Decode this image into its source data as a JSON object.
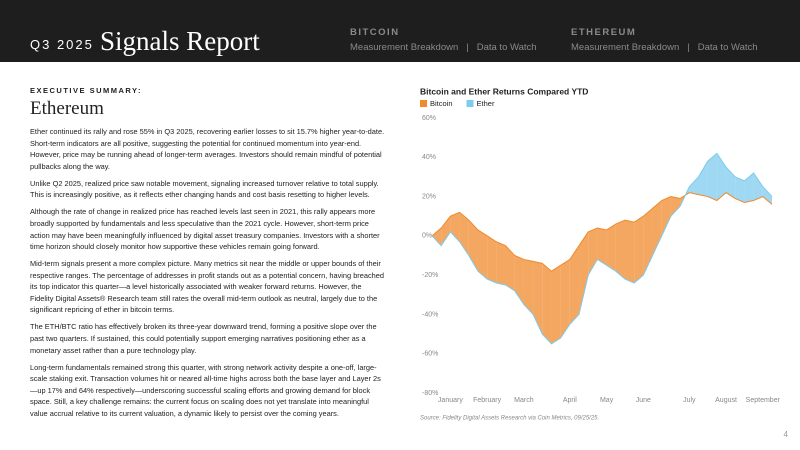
{
  "header": {
    "quarter": "Q3 2025",
    "title": "Signals Report",
    "nav": [
      {
        "heading": "BITCOIN",
        "links": [
          "Measurement Breakdown",
          "Data to Watch"
        ],
        "separator": "|"
      },
      {
        "heading": "ETHEREUM",
        "links": [
          "Measurement Breakdown",
          "Data to Watch"
        ],
        "separator": "|"
      }
    ]
  },
  "summary": {
    "label": "EXECUTIVE SUMMARY:",
    "heading": "Ethereum",
    "paragraphs": [
      "Ether continued its rally and rose 55% in Q3 2025, recovering earlier losses to sit 15.7% higher year-to-date. Short-term indicators are all positive, suggesting the potential for continued momentum into year-end. However, price may be running ahead of longer-term averages. Investors should remain mindful of potential pullbacks along the way.",
      "Unlike Q2 2025, realized price saw notable movement, signaling increased turnover relative to total supply. This is increasingly positive, as it reflects ether changing hands and cost basis resetting to higher levels.",
      "Although the rate of change in realized price has reached levels last seen in 2021, this rally appears more broadly supported by fundamentals and less speculative than the 2021 cycle. However, short-term price action may have been meaningfully influenced by digital asset treasury companies. Investors with a shorter time horizon should closely monitor how supportive these vehicles remain going forward.",
      "Mid-term signals present a more complex picture. Many metrics sit near the middle or upper bounds of their respective ranges. The percentage of addresses in profit stands out as a potential concern, having breached its top indicator this quarter—a level historically associated with weaker forward returns. However, the Fidelity Digital Assets® Research team still rates the overall mid-term outlook as neutral, largely due to the significant repricing of ether in bitcoin terms.",
      "The ETH/BTC ratio has effectively broken its three-year downward trend, forming a positive slope over the past two quarters. If sustained, this could potentially support emerging narratives positioning ether as a monetary asset rather than a pure technology play.",
      "Long-term fundamentals remained strong this quarter, with strong network activity despite a one-off, large-scale staking exit. Transaction volumes hit or neared all-time highs across both the base layer and Layer 2s—up 17% and 64% respectively—underscoring successful scaling efforts and growing demand for block space. Still, a key challenge remains: the current focus on scaling does not yet translate into meaningful value accrual relative to its current valuation, a dynamic likely to persist over the coming years."
    ]
  },
  "chart_data": {
    "type": "area-difference",
    "title": "Bitcoin and Ether Returns Compared YTD",
    "categories": [
      null,
      null,
      "January",
      null,
      null,
      null,
      "February",
      null,
      null,
      null,
      "March",
      null,
      null,
      null,
      null,
      "April",
      null,
      null,
      null,
      "May",
      null,
      null,
      null,
      "June",
      null,
      null,
      null,
      null,
      "July",
      null,
      null,
      null,
      "August",
      null,
      null,
      null,
      "September",
      null
    ],
    "series": [
      {
        "name": "Bitcoin",
        "color": "#f08a2c",
        "values": [
          0,
          4,
          10,
          12,
          8,
          3,
          0,
          -3,
          -5,
          -10,
          -12,
          -13,
          -14,
          -18,
          -15,
          -12,
          -5,
          2,
          4,
          3,
          6,
          8,
          7,
          10,
          14,
          18,
          20,
          19,
          22,
          21,
          20,
          18,
          22,
          19,
          17,
          18,
          20,
          16
        ]
      },
      {
        "name": "Ether",
        "color": "#7dcbed",
        "values": [
          0,
          -5,
          2,
          -3,
          -10,
          -18,
          -22,
          -24,
          -25,
          -28,
          -35,
          -40,
          -50,
          -55,
          -52,
          -45,
          -40,
          -20,
          -12,
          -15,
          -18,
          -22,
          -24,
          -20,
          -10,
          0,
          10,
          15,
          25,
          30,
          38,
          42,
          35,
          30,
          28,
          32,
          25,
          20
        ]
      }
    ],
    "ylim": [
      -80,
      60
    ],
    "yticks": [
      {
        "value": -80,
        "label": "-80%"
      },
      {
        "value": -60,
        "label": "-60%"
      },
      {
        "value": -40,
        "label": "-40%"
      },
      {
        "value": -20,
        "label": "-20%"
      },
      {
        "value": 0,
        "label": "0%"
      },
      {
        "value": 20,
        "label": "20%"
      },
      {
        "value": 40,
        "label": "40%"
      },
      {
        "value": 60,
        "label": "60%"
      }
    ],
    "grid": false,
    "legend": "top-left",
    "source": "Source: Fidelity Digital Assets Research via Coin Metrics, 09/25/25."
  },
  "page_number": "4"
}
